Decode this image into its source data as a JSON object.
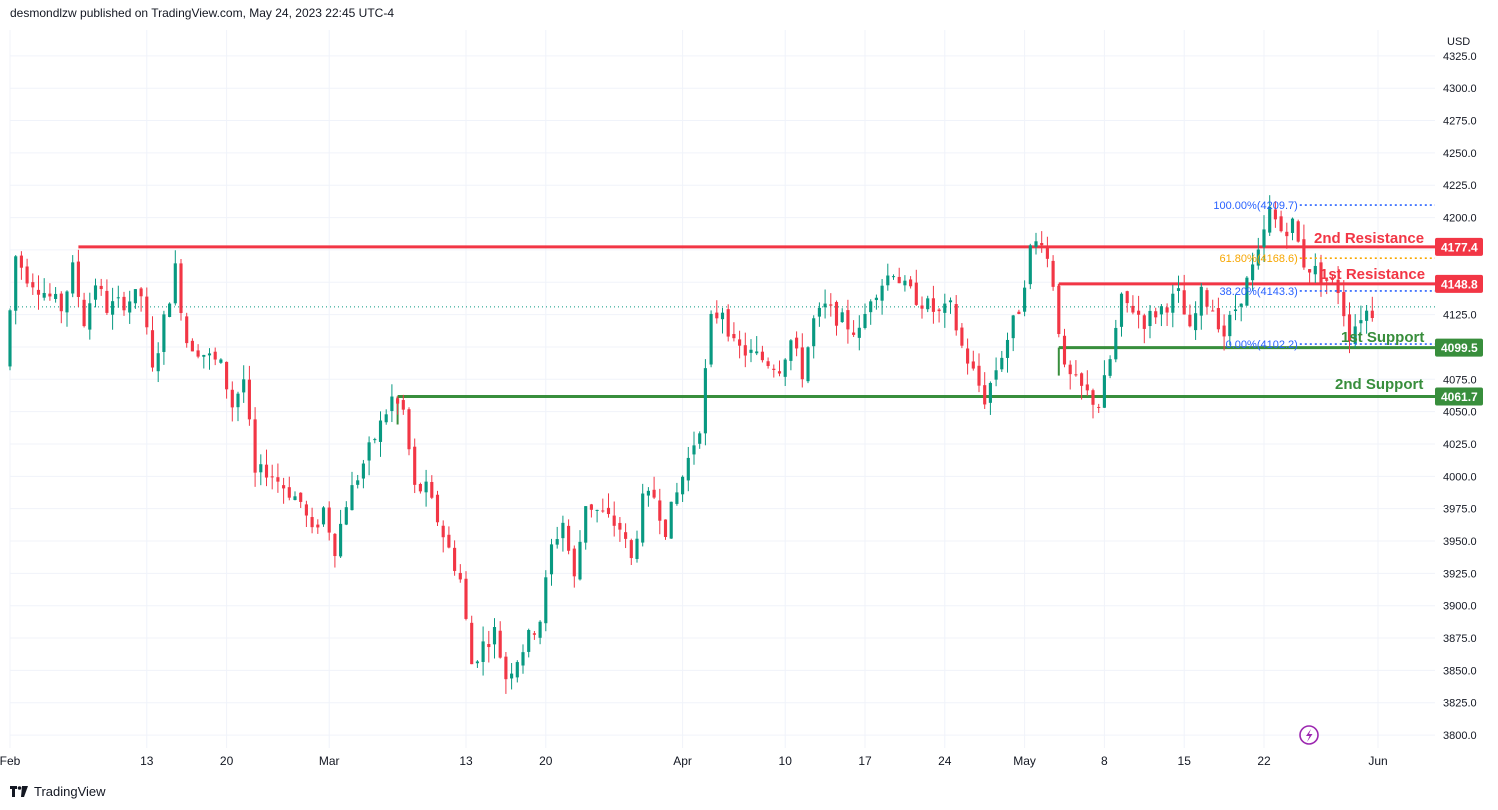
{
  "header": {
    "publisher": "desmondlzw published on TradingView.com, May 24, 2023 22:45 UTC-4"
  },
  "footer": {
    "brand": "TradingView"
  },
  "colors": {
    "up": "#089981",
    "down": "#f23645",
    "resistance": "#f23645",
    "support": "#388e3c",
    "fib_blue": "#2962ff",
    "fib_orange": "#f7a600"
  },
  "chart_data": {
    "type": "candlestick",
    "currency": "USD",
    "ylim": [
      3790,
      4345
    ],
    "y_ticks": [
      3800,
      3825,
      3850,
      3875,
      3900,
      3925,
      3950,
      3975,
      4000,
      4025,
      4050,
      4075,
      4100,
      4125,
      4150,
      4175,
      4200,
      4225,
      4250,
      4275,
      4300,
      4325
    ],
    "y_tick_labels": [
      "3800.0",
      "3825.0",
      "3850.0",
      "3875.0",
      "3900.0",
      "3925.0",
      "3950.0",
      "3975.0",
      "4000.0",
      "4025.0",
      "4050.0",
      "4075.0",
      "4100.0",
      "4125.0",
      "4150.0",
      "4175.0",
      "4200.0",
      "4225.0",
      "4250.0",
      "4275.0",
      "4300.0",
      "4325.0"
    ],
    "x_range": [
      "2023-02-01",
      "2023-06-06"
    ],
    "x_ticks": [
      {
        "date": "2023-02-01",
        "label": "Feb"
      },
      {
        "date": "2023-02-13",
        "label": "13"
      },
      {
        "date": "2023-02-20",
        "label": "20"
      },
      {
        "date": "2023-03-01",
        "label": "Mar"
      },
      {
        "date": "2023-03-13",
        "label": "13"
      },
      {
        "date": "2023-03-20",
        "label": "20"
      },
      {
        "date": "2023-04-01",
        "label": "Apr"
      },
      {
        "date": "2023-04-10",
        "label": "10"
      },
      {
        "date": "2023-04-17",
        "label": "17"
      },
      {
        "date": "2023-04-24",
        "label": "24"
      },
      {
        "date": "2023-05-01",
        "label": "May"
      },
      {
        "date": "2023-05-08",
        "label": "8"
      },
      {
        "date": "2023-05-15",
        "label": "15"
      },
      {
        "date": "2023-05-22",
        "label": "22"
      },
      {
        "date": "2023-06-01",
        "label": "Jun"
      }
    ],
    "price_path": [
      [
        "2023-02-01",
        4085
      ],
      [
        "2023-02-02",
        4170
      ],
      [
        "2023-02-03",
        4155
      ],
      [
        "2023-02-06",
        4130
      ],
      [
        "2023-02-07",
        4160
      ],
      [
        "2023-02-08",
        4120
      ],
      [
        "2023-02-09",
        4150
      ],
      [
        "2023-02-10",
        4130
      ],
      [
        "2023-02-13",
        4140
      ],
      [
        "2023-02-14",
        4080
      ],
      [
        "2023-02-15",
        4120
      ],
      [
        "2023-02-16",
        4160
      ],
      [
        "2023-02-17",
        4105
      ],
      [
        "2023-02-20",
        4085
      ],
      [
        "2023-02-21",
        4055
      ],
      [
        "2023-02-22",
        4075
      ],
      [
        "2023-02-23",
        4000
      ],
      [
        "2023-02-24",
        4005
      ],
      [
        "2023-02-27",
        3980
      ],
      [
        "2023-02-28",
        3955
      ],
      [
        "2023-03-01",
        3975
      ],
      [
        "2023-03-02",
        3945
      ],
      [
        "2023-03-03",
        3980
      ],
      [
        "2023-03-06",
        4040
      ],
      [
        "2023-03-07",
        4060
      ],
      [
        "2023-03-08",
        4050
      ],
      [
        "2023-03-09",
        3990
      ],
      [
        "2023-03-10",
        3990
      ],
      [
        "2023-03-13",
        3920
      ],
      [
        "2023-03-14",
        3855
      ],
      [
        "2023-03-15",
        3870
      ],
      [
        "2023-03-16",
        3880
      ],
      [
        "2023-03-17",
        3845
      ],
      [
        "2023-03-20",
        3890
      ],
      [
        "2023-03-21",
        3945
      ],
      [
        "2023-03-22",
        3965
      ],
      [
        "2023-03-23",
        3920
      ],
      [
        "2023-03-24",
        3980
      ],
      [
        "2023-03-27",
        3960
      ],
      [
        "2023-03-28",
        3935
      ],
      [
        "2023-03-29",
        3980
      ],
      [
        "2023-03-30",
        3985
      ],
      [
        "2023-03-31",
        3960
      ],
      [
        "2023-04-03",
        4040
      ],
      [
        "2023-04-04",
        4120
      ],
      [
        "2023-04-05",
        4130
      ],
      [
        "2023-04-06",
        4100
      ],
      [
        "2023-04-10",
        4085
      ],
      [
        "2023-04-11",
        4105
      ],
      [
        "2023-04-12",
        4080
      ],
      [
        "2023-04-13",
        4120
      ],
      [
        "2023-04-14",
        4130
      ],
      [
        "2023-04-17",
        4110
      ],
      [
        "2023-04-18",
        4140
      ],
      [
        "2023-04-19",
        4150
      ],
      [
        "2023-04-20",
        4160
      ],
      [
        "2023-04-21",
        4145
      ],
      [
        "2023-04-24",
        4125
      ],
      [
        "2023-04-25",
        4130
      ],
      [
        "2023-04-26",
        4100
      ],
      [
        "2023-04-27",
        4080
      ],
      [
        "2023-04-28",
        4060
      ],
      [
        "2023-05-01",
        4130
      ],
      [
        "2023-05-02",
        4175
      ],
      [
        "2023-05-03",
        4185
      ],
      [
        "2023-05-04",
        4150
      ],
      [
        "2023-05-05",
        4080
      ],
      [
        "2023-05-08",
        4055
      ],
      [
        "2023-05-09",
        4090
      ],
      [
        "2023-05-10",
        4135
      ],
      [
        "2023-05-11",
        4130
      ],
      [
        "2023-05-12",
        4120
      ],
      [
        "2023-05-15",
        4140
      ],
      [
        "2023-05-16",
        4110
      ],
      [
        "2023-05-17",
        4140
      ],
      [
        "2023-05-18",
        4130
      ],
      [
        "2023-05-19",
        4110
      ],
      [
        "2023-05-22",
        4170
      ],
      [
        "2023-05-23",
        4205
      ],
      [
        "2023-05-24",
        4190
      ],
      [
        "2023-05-25",
        4195
      ],
      [
        "2023-05-26",
        4165
      ],
      [
        "2023-05-29",
        4145
      ],
      [
        "2023-05-30",
        4110
      ],
      [
        "2023-05-31",
        4125
      ],
      [
        "2023-06-01",
        4130
      ]
    ],
    "last_price": 4131,
    "levels": [
      {
        "name": "2nd Resistance",
        "value": 4177.4,
        "label": "4177.4",
        "start": "2023-02-07",
        "type": "resistance"
      },
      {
        "name": "1st Resistance",
        "value": 4148.8,
        "label": "4148.8",
        "start": "2023-05-04",
        "type": "resistance"
      },
      {
        "name": "1st Support",
        "value": 4099.5,
        "label": "4099.5",
        "start": "2023-05-04",
        "type": "support"
      },
      {
        "name": "2nd Support",
        "value": 4061.7,
        "label": "4061.7",
        "start": "2023-03-07",
        "type": "support"
      }
    ],
    "fib_levels": [
      {
        "text": "100.00%(4209.7)",
        "value": 4209.7,
        "color": "blue"
      },
      {
        "text": "61.80%(4168.6)",
        "value": 4168.6,
        "color": "orange"
      },
      {
        "text": "38.20%(4143.3)",
        "value": 4143.3,
        "color": "blue"
      },
      {
        "text": "0.00%(4102.2)",
        "value": 4102.2,
        "color": "blue"
      }
    ],
    "fib_x_range": [
      "2023-05-19",
      "2023-06-06"
    ]
  }
}
